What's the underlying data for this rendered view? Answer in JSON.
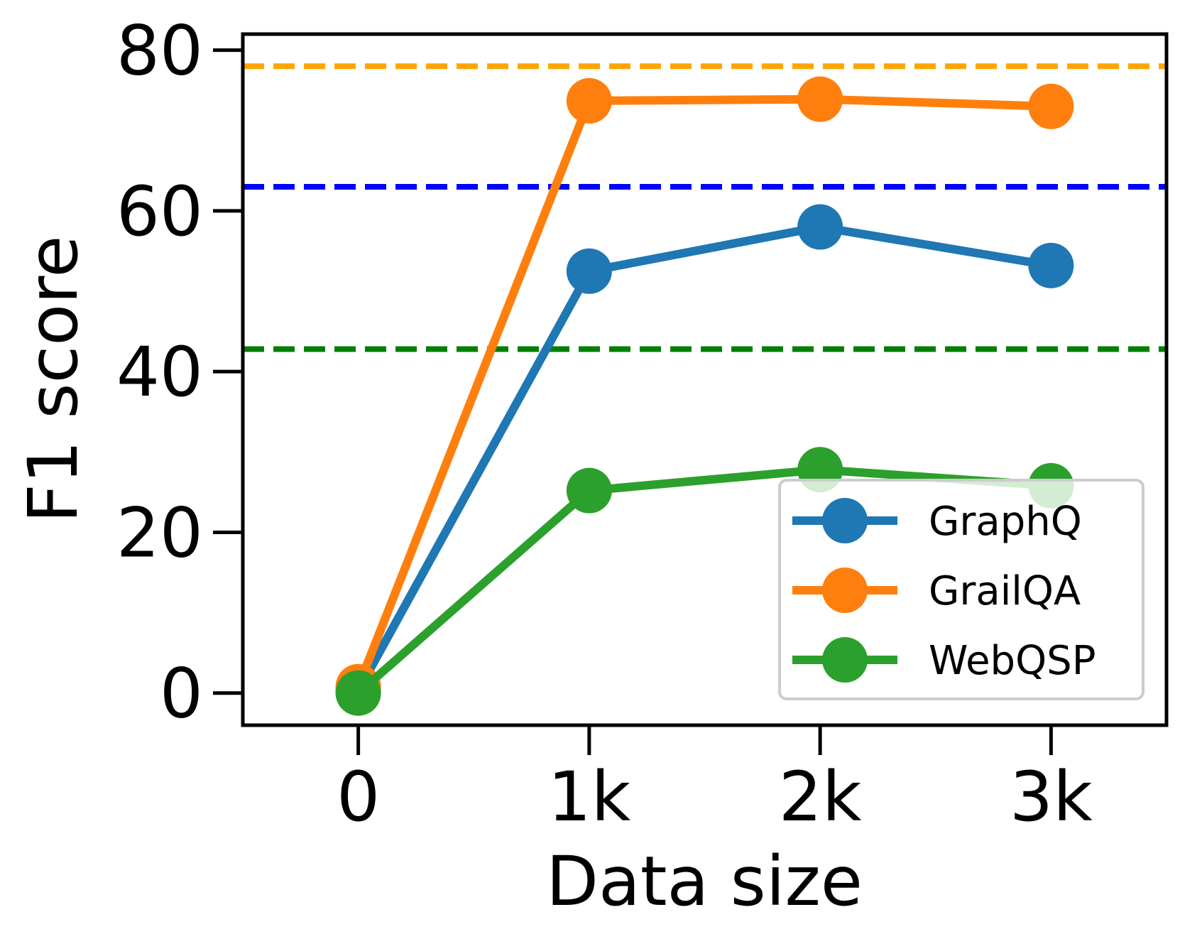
{
  "chart_data": {
    "type": "line",
    "xlabel": "Data size",
    "ylabel": "F1 score",
    "x": [
      0,
      1000,
      2000,
      3000
    ],
    "x_tick_labels": [
      "0",
      "1k",
      "2k",
      "3k"
    ],
    "y_ticks": [
      0,
      20,
      40,
      60,
      80
    ],
    "xlim": [
      -500,
      3500
    ],
    "ylim": [
      -4,
      82
    ],
    "grid": false,
    "legend_position": "lower-right",
    "series": [
      {
        "name": "GraphQ",
        "color": "#1f77b4",
        "values": [
          0.3,
          52.5,
          58.0,
          53.2
        ]
      },
      {
        "name": "GrailQA",
        "color": "#ff7f0e",
        "values": [
          0.8,
          73.7,
          73.9,
          73.0
        ]
      },
      {
        "name": "WebQSP",
        "color": "#2ca02c",
        "values": [
          0.0,
          25.2,
          27.8,
          25.8
        ]
      }
    ],
    "reference_lines": [
      {
        "y": 78.0,
        "color": "#ffa500",
        "style": "dashed"
      },
      {
        "y": 63.0,
        "color": "#0000ff",
        "style": "dashed"
      },
      {
        "y": 42.8,
        "color": "#008000",
        "style": "dashed"
      }
    ]
  }
}
